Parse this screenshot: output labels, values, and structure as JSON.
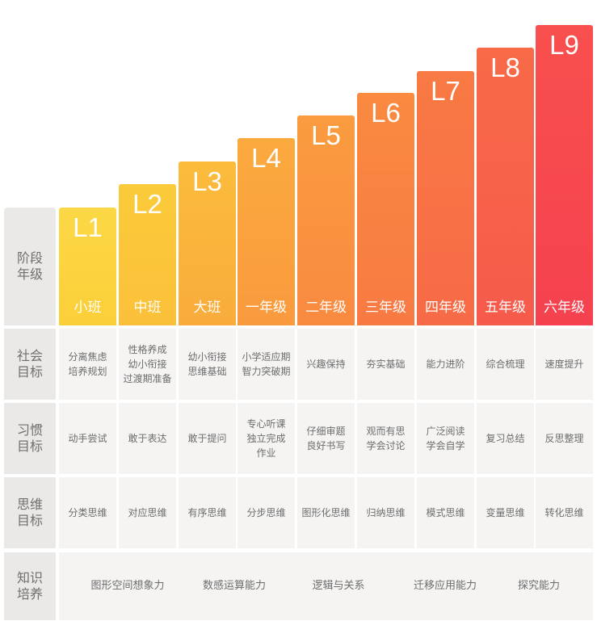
{
  "header_rows": {
    "stage": "阶段\n年级",
    "social": "社会\n目标",
    "habit": "习惯\n目标",
    "thinking": "思维\n目标",
    "knowledge": "知识\n培养"
  },
  "levels": [
    {
      "label": "L1",
      "grade": "小班",
      "color_top": "#fcd846",
      "color_bottom": "#fbcf38"
    },
    {
      "label": "L2",
      "grade": "中班",
      "color_top": "#fbcb3a",
      "color_bottom": "#fbc03a"
    },
    {
      "label": "L3",
      "grade": "大班",
      "color_top": "#fbbc3c",
      "color_bottom": "#f9ac3c"
    },
    {
      "label": "L4",
      "grade": "一年级",
      "color_top": "#fbaa3e",
      "color_bottom": "#f99a3e"
    },
    {
      "label": "L5",
      "grade": "二年级",
      "color_top": "#fa9c3f",
      "color_bottom": "#f98a40"
    },
    {
      "label": "L6",
      "grade": "三年级",
      "color_top": "#f98a40",
      "color_bottom": "#f87a43"
    },
    {
      "label": "L7",
      "grade": "四年级",
      "color_top": "#f87a44",
      "color_bottom": "#f76a47"
    },
    {
      "label": "L8",
      "grade": "五年级",
      "color_top": "#f86a48",
      "color_bottom": "#f65a4b"
    },
    {
      "label": "L9",
      "grade": "六年级",
      "color_top": "#f8504e",
      "color_bottom": "#f5414f"
    }
  ],
  "social_goals": [
    "分离焦虑\n培养规划",
    "性格养成\n幼小衔接\n过渡期准备",
    "幼小衔接\n思维基础",
    "小学适应期\n智力突破期",
    "兴趣保持",
    "夯实基础",
    "能力进阶",
    "综合梳理",
    "速度提升"
  ],
  "habit_goals": [
    "动手尝试",
    "敢于表达",
    "敢于提问",
    "专心听课\n独立完成\n作业",
    "仔细审题\n良好书写",
    "观而有思\n学会讨论",
    "广泛阅读\n学会自学",
    "复习总结",
    "反思整理"
  ],
  "thinking_goals": [
    "分类思维",
    "对应思维",
    "有序思维",
    "分步思维",
    "图形化思维",
    "归纳思维",
    "模式思维",
    "变量思维",
    "转化思维"
  ],
  "knowledge_items": [
    "图形空间想象力",
    "数感运算能力",
    "逻辑与关系",
    "迁移应用能力",
    "探究能力"
  ]
}
